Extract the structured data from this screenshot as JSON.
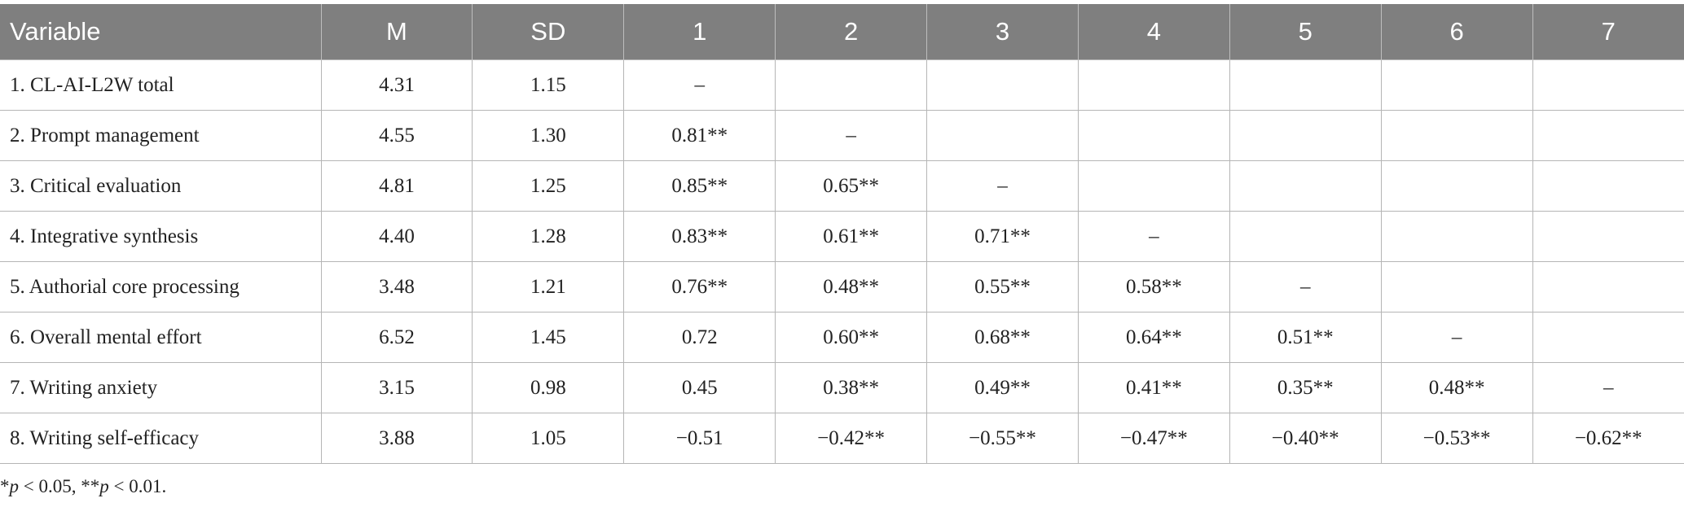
{
  "table": {
    "header": [
      "Variable",
      "M",
      "SD",
      "1",
      "2",
      "3",
      "4",
      "5",
      "6",
      "7"
    ],
    "rows": [
      [
        "1. CL-AI-L2W total",
        "4.31",
        "1.15",
        "–"
      ],
      [
        "2. Prompt management",
        "4.55",
        "1.30",
        "0.81**",
        "–"
      ],
      [
        "3. Critical evaluation",
        "4.81",
        "1.25",
        "0.85**",
        "0.65**",
        "–"
      ],
      [
        "4. Integrative synthesis",
        "4.40",
        "1.28",
        "0.83**",
        "0.61**",
        "0.71**",
        "–"
      ],
      [
        "5. Authorial core processing",
        "3.48",
        "1.21",
        "0.76**",
        "0.48**",
        "0.55**",
        "0.58**",
        "–"
      ],
      [
        "6. Overall mental effort",
        "6.52",
        "1.45",
        "0.72",
        "0.60**",
        "0.68**",
        "0.64**",
        "0.51**",
        "–"
      ],
      [
        "7. Writing anxiety",
        "3.15",
        "0.98",
        "0.45",
        "0.38**",
        "0.49**",
        "0.41**",
        "0.35**",
        "0.48**",
        "–"
      ],
      [
        "8. Writing self-efficacy",
        "3.88",
        "1.05",
        "−0.51",
        "−0.42**",
        "−0.55**",
        "−0.47**",
        "−0.40**",
        "−0.53**",
        "−0.62**"
      ]
    ],
    "footnote": [
      "*",
      "p",
      " < 0.05, **",
      "p",
      " < 0.01."
    ]
  }
}
